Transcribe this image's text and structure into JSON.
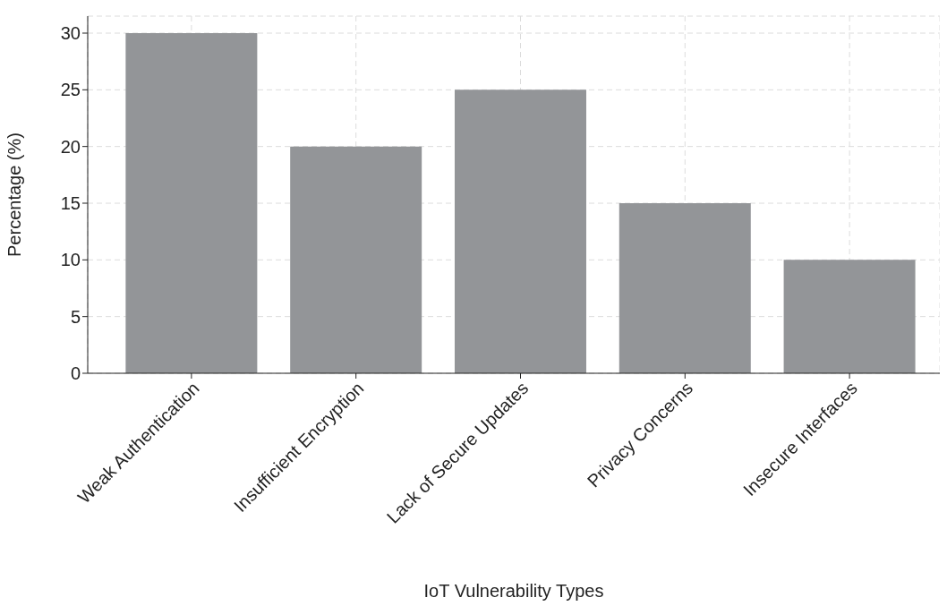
{
  "chart_data": {
    "type": "bar",
    "xlabel": "IoT Vulnerability Types",
    "ylabel": "Percentage (%)",
    "categories": [
      "Weak Authentication",
      "Insufficient Encryption",
      "Lack of Secure Updates",
      "Privacy Concerns",
      "Insecure Interfaces"
    ],
    "values": [
      30,
      20,
      25,
      15,
      10
    ],
    "color": "#939598",
    "ylim": [
      0,
      31.5
    ],
    "yticks": [
      0,
      5,
      10,
      15,
      20,
      25,
      30
    ],
    "grid": true
  }
}
